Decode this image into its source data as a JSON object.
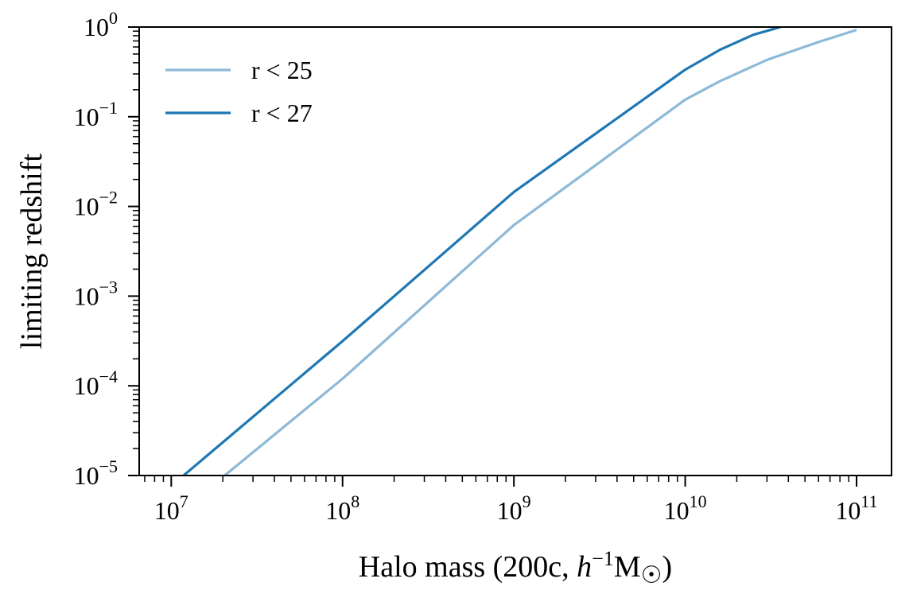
{
  "chart_data": {
    "type": "line",
    "xscale": "log",
    "yscale": "log",
    "xlim": [
      6500000.0,
      160000000000.0
    ],
    "ylim": [
      1e-05,
      1
    ],
    "xlabel": "Halo mass (200c, h⁻¹M☉)",
    "ylabel": "limiting redshift",
    "x_ticks": [
      {
        "value": 10000000.0,
        "base": "10",
        "exp": "7"
      },
      {
        "value": 100000000.0,
        "base": "10",
        "exp": "8"
      },
      {
        "value": 1000000000.0,
        "base": "10",
        "exp": "9"
      },
      {
        "value": 10000000000.0,
        "base": "10",
        "exp": "10"
      },
      {
        "value": 100000000000.0,
        "base": "10",
        "exp": "11"
      }
    ],
    "y_ticks": [
      {
        "value": 1e-05,
        "base": "10",
        "exp": "−5"
      },
      {
        "value": 0.0001,
        "base": "10",
        "exp": "−4"
      },
      {
        "value": 0.001,
        "base": "10",
        "exp": "−3"
      },
      {
        "value": 0.01,
        "base": "10",
        "exp": "−2"
      },
      {
        "value": 0.1,
        "base": "10",
        "exp": "−1"
      },
      {
        "value": 1,
        "base": "10",
        "exp": "0"
      }
    ],
    "legend": {
      "position": "upper-left"
    },
    "series": [
      {
        "name": "r < 25",
        "color": "#8db9d8",
        "x": [
          20500000.0,
          100000000.0,
          1000000000.0,
          10000000000.0,
          16000000000.0,
          30000000000.0,
          60000000000.0,
          100000000000.0
        ],
        "y": [
          1e-05,
          0.00012,
          0.0062,
          0.155,
          0.25,
          0.43,
          0.68,
          0.93
        ]
      },
      {
        "name": "r < 27",
        "color": "#1f77b4",
        "x": [
          11800000.0,
          100000000.0,
          1000000000.0,
          10000000000.0,
          16000000000.0,
          25000000000.0,
          36000000000.0
        ],
        "y": [
          1e-05,
          0.000315,
          0.0145,
          0.335,
          0.56,
          0.82,
          1.0
        ]
      }
    ]
  }
}
